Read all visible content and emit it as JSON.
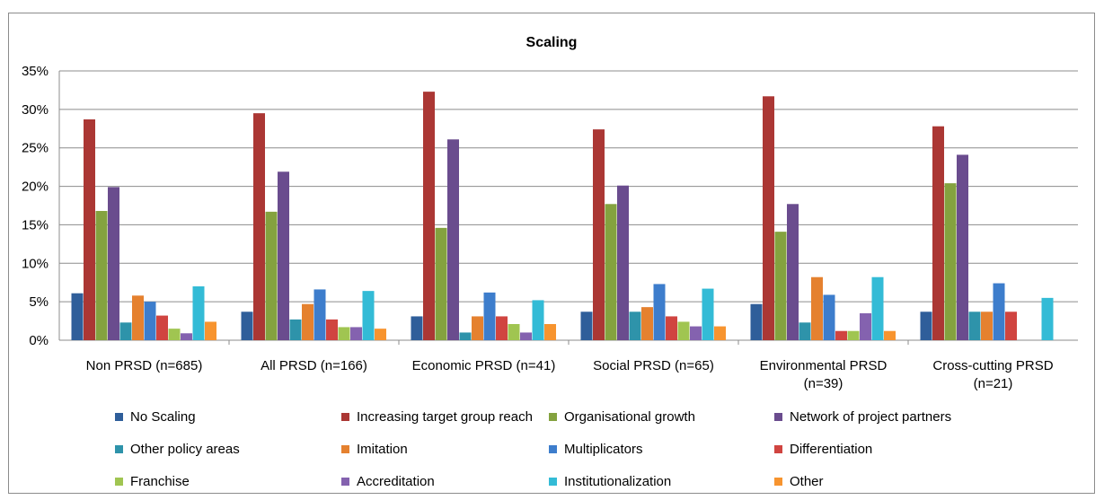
{
  "chart_data": {
    "type": "bar",
    "title": "Scaling",
    "ylim": [
      0,
      0.35
    ],
    "yticks": [
      "0%",
      "5%",
      "10%",
      "15%",
      "20%",
      "25%",
      "30%",
      "35%"
    ],
    "categories": [
      [
        "Non PRSD (n=685)"
      ],
      [
        "All PRSD (n=166)"
      ],
      [
        "Economic PRSD (n=41)"
      ],
      [
        "Social PRSD (n=65)"
      ],
      [
        "Environmental PRSD",
        "(n=39)"
      ],
      [
        "Cross-cutting PRSD",
        "(n=21)"
      ]
    ],
    "series": [
      {
        "name": "No Scaling",
        "color": "#2F5E9A",
        "values": [
          0.061,
          0.037,
          0.031,
          0.037,
          0.047,
          0.037
        ]
      },
      {
        "name": "Increasing target group reach",
        "color": "#AB3734",
        "values": [
          0.287,
          0.295,
          0.323,
          0.274,
          0.317,
          0.278
        ]
      },
      {
        "name": "Organisational growth",
        "color": "#84A23F",
        "values": [
          0.168,
          0.167,
          0.146,
          0.177,
          0.141,
          0.204
        ]
      },
      {
        "name": "Network of project partners",
        "color": "#6A4C8E",
        "values": [
          0.199,
          0.219,
          0.261,
          0.201,
          0.177,
          0.241
        ]
      },
      {
        "name": "Other policy areas",
        "color": "#2E93AA",
        "values": [
          0.023,
          0.027,
          0.01,
          0.037,
          0.023,
          0.037
        ]
      },
      {
        "name": "Imitation",
        "color": "#E5812F",
        "values": [
          0.058,
          0.047,
          0.031,
          0.043,
          0.082,
          0.037
        ]
      },
      {
        "name": "Multiplicators",
        "color": "#3D7DCC",
        "values": [
          0.05,
          0.066,
          0.062,
          0.073,
          0.059,
          0.074
        ]
      },
      {
        "name": "Differentiation",
        "color": "#D04440",
        "values": [
          0.032,
          0.027,
          0.031,
          0.031,
          0.012,
          0.037
        ]
      },
      {
        "name": "Franchise",
        "color": "#A0C551",
        "values": [
          0.015,
          0.017,
          0.021,
          0.024,
          0.012,
          0.0
        ]
      },
      {
        "name": "Accreditation",
        "color": "#8462AF",
        "values": [
          0.009,
          0.017,
          0.01,
          0.018,
          0.035,
          0.0
        ]
      },
      {
        "name": "Institutionalization",
        "color": "#33BBD6",
        "values": [
          0.07,
          0.064,
          0.052,
          0.067,
          0.082,
          0.055
        ]
      },
      {
        "name": "Other",
        "color": "#F7942F",
        "values": [
          0.024,
          0.015,
          0.021,
          0.018,
          0.012,
          0.0
        ]
      }
    ],
    "grid": true,
    "legend_position": "bottom"
  }
}
